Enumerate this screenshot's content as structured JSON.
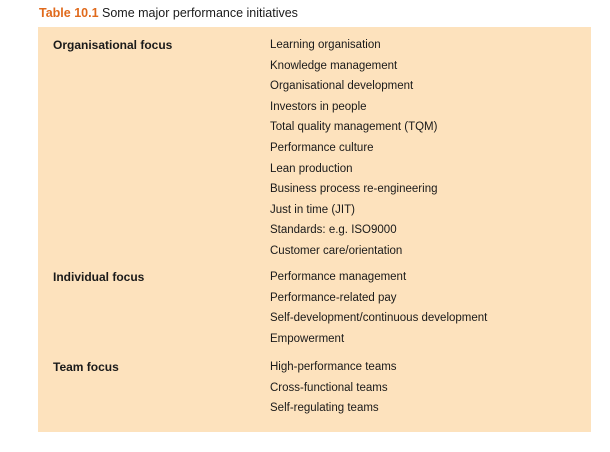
{
  "caption": {
    "number": "Table 10.1",
    "title": "Some major performance initiatives"
  },
  "sections": [
    {
      "label": "Organisational focus",
      "items": [
        "Learning organisation",
        "Knowledge management",
        "Organisational development",
        "Investors in people",
        "Total quality management (TQM)",
        "Performance culture",
        "Lean production",
        "Business process re-engineering",
        "Just in time (JIT)",
        "Standards: e.g. ISO9000",
        "Customer care/orientation"
      ]
    },
    {
      "label": "Individual focus",
      "items": [
        "Performance management",
        "Performance-related pay",
        "Self-development/continuous development",
        "Empowerment"
      ]
    },
    {
      "label": "Team focus",
      "items": [
        "High-performance teams",
        "Cross-functional teams",
        "Self-regulating teams"
      ]
    }
  ],
  "colors": {
    "accent": "#e06a1c",
    "panel_background": "#fde2bd"
  }
}
